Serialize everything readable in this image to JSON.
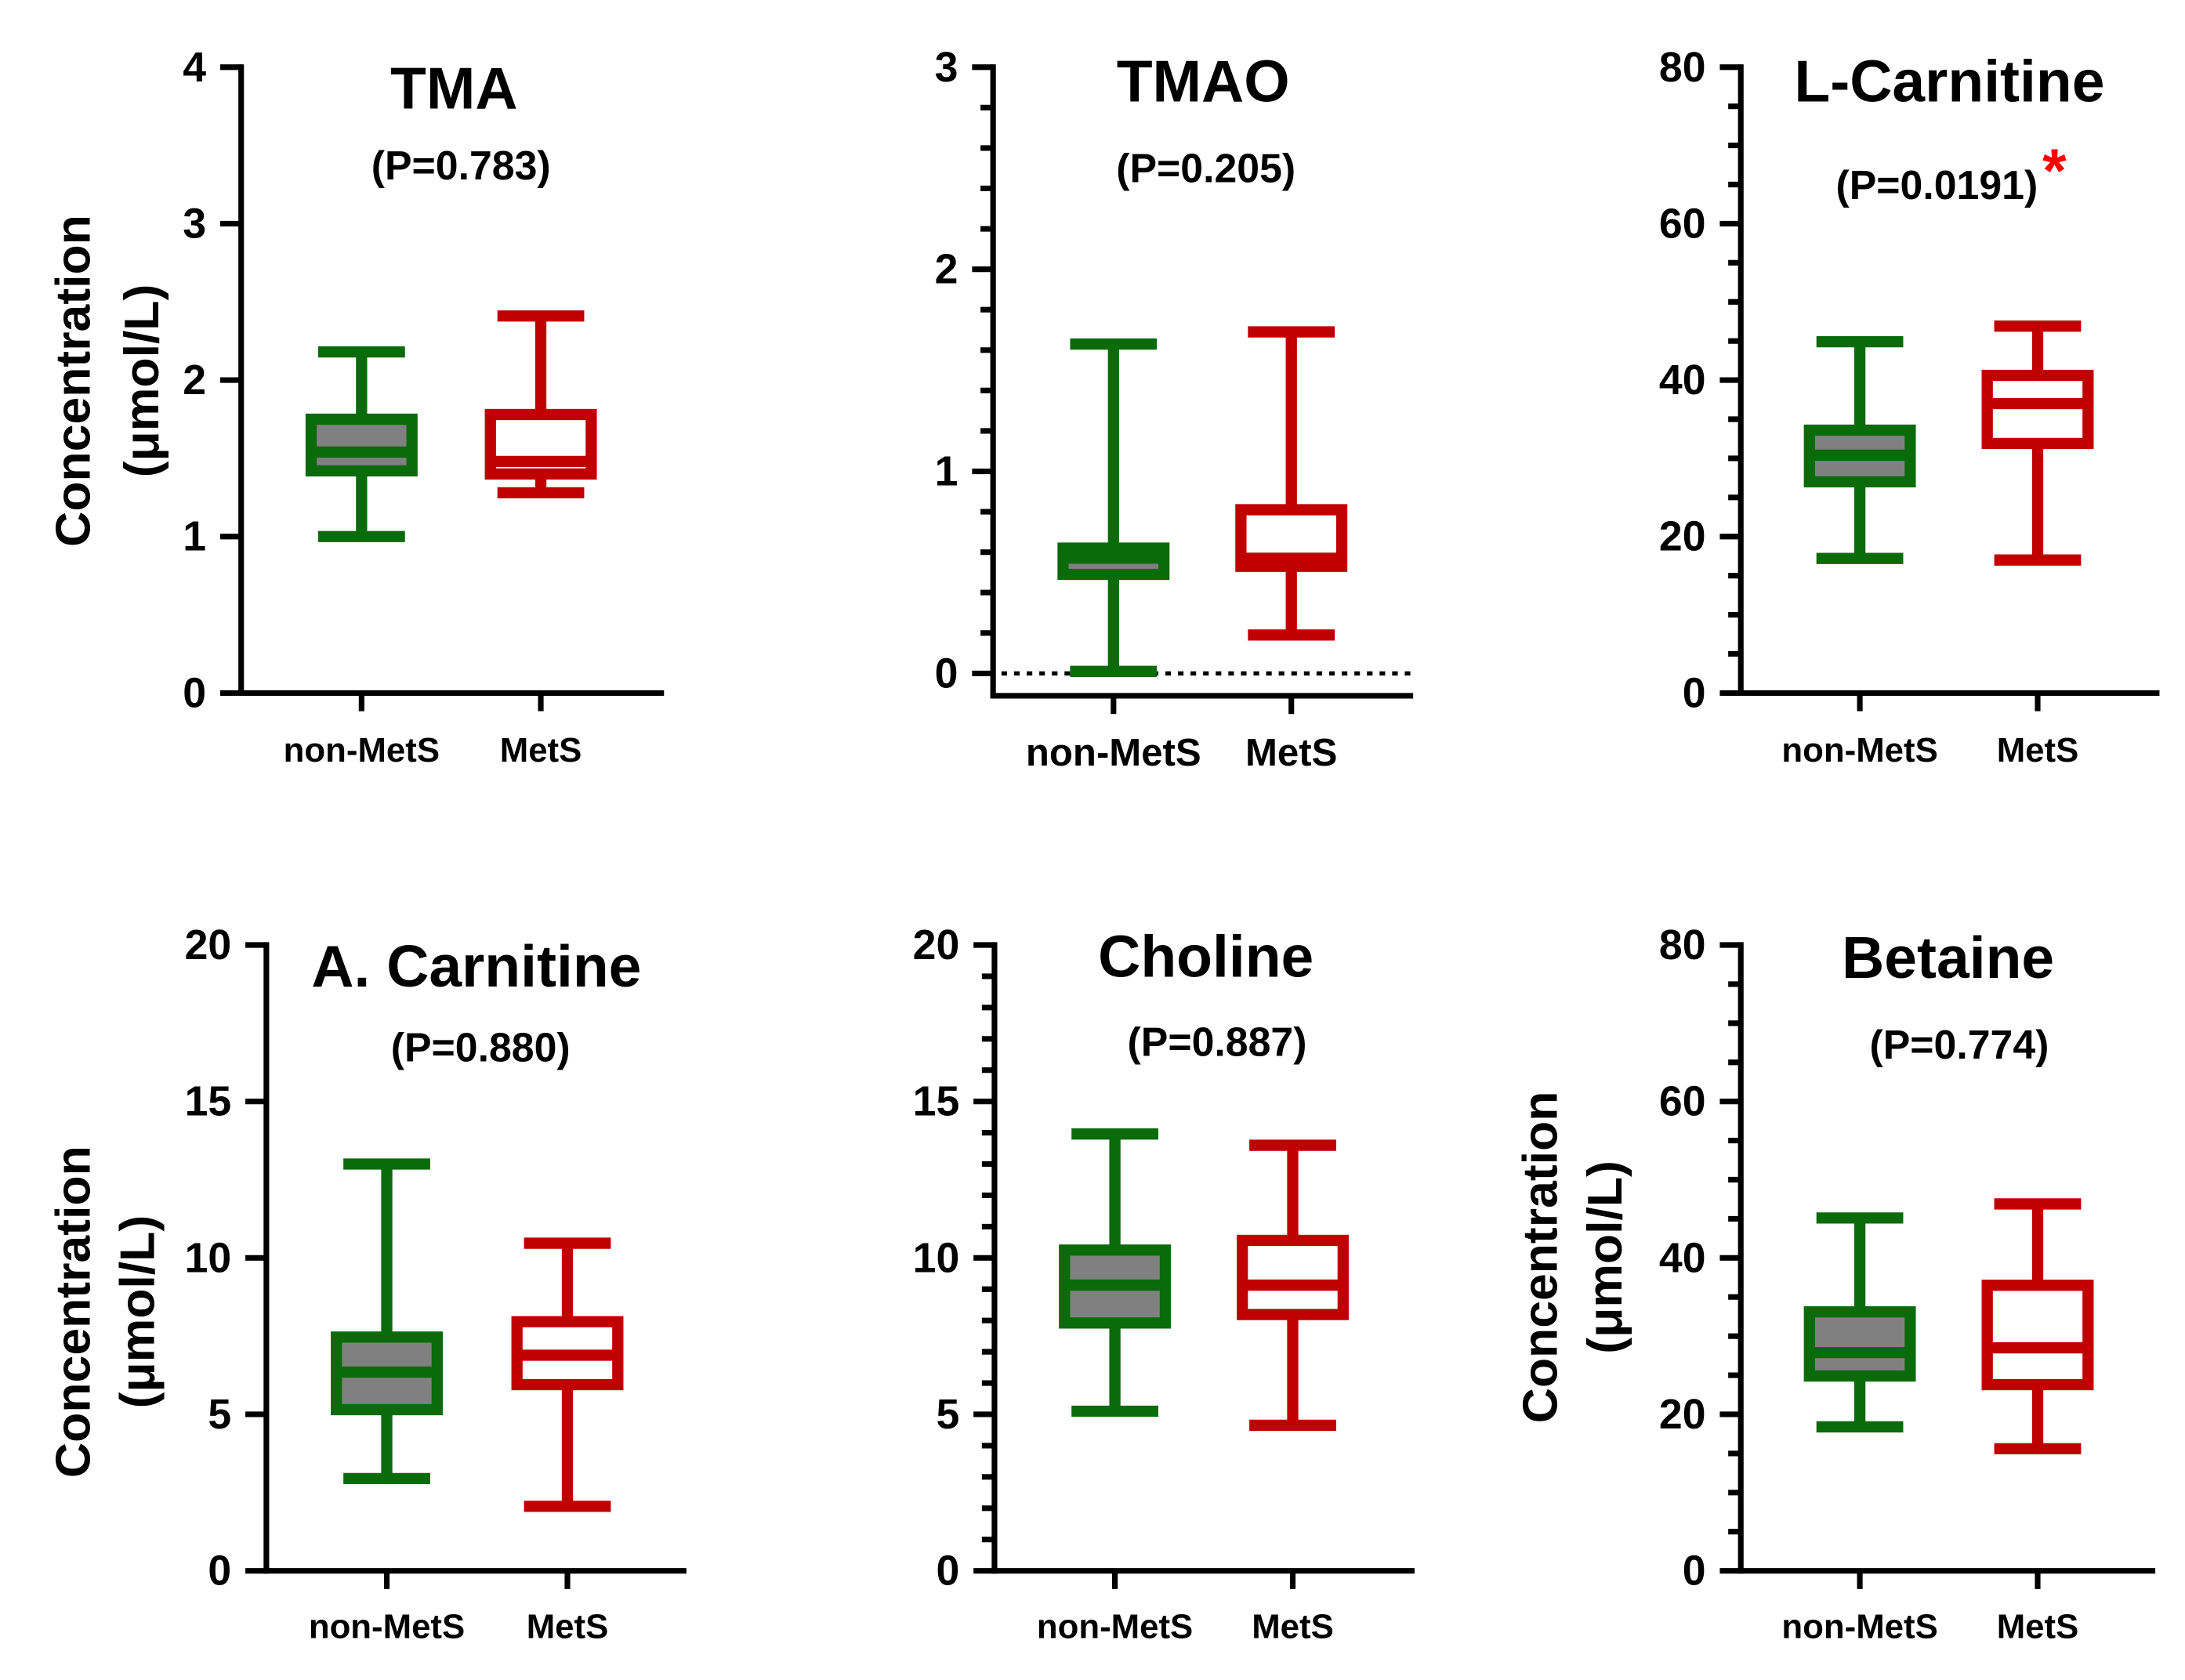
{
  "colors": {
    "axis": "#000000",
    "significance": "#ff0000",
    "box_colors": [
      {
        "line": "#0b6b0b",
        "fill": "#808080"
      },
      {
        "line": "#c00000",
        "fill": "#ffffff"
      }
    ]
  },
  "chart_data": [
    {
      "type": "box",
      "title": "TMA",
      "annotation": "(P=0.783)",
      "ylabel": [
        "Concentration",
        "(μmol/L)"
      ],
      "categories": [
        "non-MetS",
        "MetS"
      ],
      "ylim": [
        0,
        4
      ],
      "yticks": [
        0,
        1,
        2,
        3,
        4
      ],
      "minor_step": null,
      "boxes": [
        {
          "min": 1.0,
          "q1": 1.42,
          "median": 1.54,
          "q3": 1.75,
          "max": 2.18
        },
        {
          "min": 1.28,
          "q1": 1.4,
          "median": 1.48,
          "q3": 1.78,
          "max": 2.41
        }
      ]
    },
    {
      "type": "box",
      "title": "TMAO",
      "annotation": "(P=0.205)",
      "ylabel": [],
      "categories": [
        "non-MetS",
        "MetS"
      ],
      "ylim": [
        0,
        3
      ],
      "yticks": [
        0,
        1,
        2,
        3
      ],
      "minor_step": 0.2,
      "reference_line": 0,
      "boxes": [
        {
          "min": 0.01,
          "q1": 0.49,
          "median": 0.57,
          "q3": 0.62,
          "max": 1.63
        },
        {
          "min": 0.19,
          "q1": 0.53,
          "median": 0.57,
          "q3": 0.81,
          "max": 1.69
        }
      ]
    },
    {
      "type": "box",
      "title": "L-Carnitine",
      "annotation": "(P=0.0191)",
      "significance_mark": "*",
      "ylabel": [],
      "categories": [
        "non-MetS",
        "MetS"
      ],
      "ylim": [
        0,
        80
      ],
      "yticks": [
        0,
        20,
        40,
        60,
        80
      ],
      "minor_step": 5,
      "boxes": [
        {
          "min": 17.2,
          "q1": 27.0,
          "median": 30.4,
          "q3": 33.6,
          "max": 44.9
        },
        {
          "min": 17.0,
          "q1": 31.9,
          "median": 37.0,
          "q3": 40.6,
          "max": 46.9
        }
      ]
    },
    {
      "type": "box",
      "title": "A. Carnitine",
      "annotation": "(P=0.880)",
      "ylabel": [
        "Concentration",
        "(μmol/L)"
      ],
      "categories": [
        "non-MetS",
        "MetS"
      ],
      "ylim": [
        0,
        20
      ],
      "yticks": [
        0,
        5,
        10,
        15,
        20
      ],
      "minor_step": null,
      "boxes": [
        {
          "min": 2.95,
          "q1": 5.15,
          "median": 6.35,
          "q3": 7.47,
          "max": 13.0
        },
        {
          "min": 2.06,
          "q1": 5.95,
          "median": 6.89,
          "q3": 7.96,
          "max": 10.47
        }
      ]
    },
    {
      "type": "box",
      "title": "Choline",
      "annotation": "(P=0.887)",
      "ylabel": [],
      "categories": [
        "non-MetS",
        "MetS"
      ],
      "ylim": [
        0,
        20
      ],
      "yticks": [
        0,
        5,
        10,
        15,
        20
      ],
      "minor_step": 1,
      "boxes": [
        {
          "min": 5.1,
          "q1": 7.92,
          "median": 9.13,
          "q3": 10.25,
          "max": 13.96
        },
        {
          "min": 4.65,
          "q1": 8.19,
          "median": 9.13,
          "q3": 10.56,
          "max": 13.6
        }
      ]
    },
    {
      "type": "box",
      "title": "Betaine",
      "annotation": "(P=0.774)",
      "ylabel": [
        "Concentration",
        "(μmol/L)"
      ],
      "categories": [
        "non-MetS",
        "MetS"
      ],
      "ylim": [
        0,
        80
      ],
      "yticks": [
        0,
        20,
        40,
        60,
        80
      ],
      "minor_step": 5,
      "boxes": [
        {
          "min": 18.4,
          "q1": 24.9,
          "median": 27.9,
          "q3": 33.1,
          "max": 45.1
        },
        {
          "min": 15.6,
          "q1": 23.8,
          "median": 28.5,
          "q3": 36.5,
          "max": 46.9
        }
      ]
    }
  ]
}
